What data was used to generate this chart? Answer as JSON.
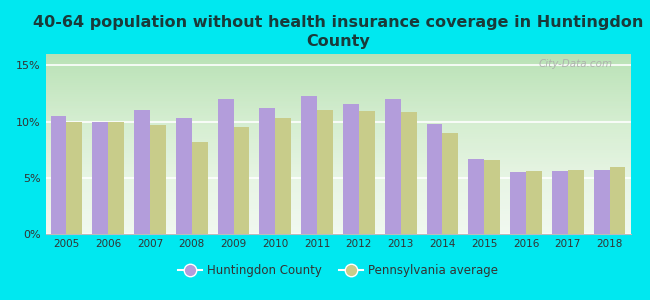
{
  "title": "40-64 population without health insurance coverage in Huntingdon\nCounty",
  "years": [
    2005,
    2006,
    2007,
    2008,
    2009,
    2010,
    2011,
    2012,
    2013,
    2014,
    2015,
    2016,
    2017,
    2018
  ],
  "huntingdon": [
    10.5,
    10.0,
    11.0,
    10.3,
    12.0,
    11.2,
    12.3,
    11.6,
    12.0,
    9.8,
    6.7,
    5.5,
    5.6,
    5.7
  ],
  "pennsylvania": [
    10.0,
    10.0,
    9.7,
    8.2,
    9.5,
    10.3,
    11.0,
    10.9,
    10.8,
    9.0,
    6.6,
    5.6,
    5.7,
    6.0
  ],
  "huntingdon_color": "#b39ddb",
  "pennsylvania_color": "#c8cc8a",
  "background_outer": "#00e8f0",
  "background_inner": "#eaf5ea",
  "title_fontsize": 11.5,
  "title_color": "#1a3a3a",
  "ylim": [
    0,
    16
  ],
  "yticks": [
    0,
    5,
    10,
    15
  ],
  "ytick_labels": [
    "0%",
    "5%",
    "10%",
    "15%"
  ],
  "legend_huntingdon": "Huntingdon County",
  "legend_pennsylvania": "Pennsylvania average",
  "watermark": "City-Data.com",
  "bar_width": 0.38
}
